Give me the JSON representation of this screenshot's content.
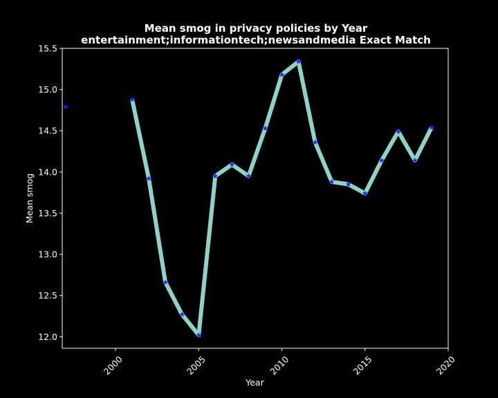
{
  "chart_data": {
    "type": "line",
    "title_line1": "Mean smog in privacy policies by Year",
    "title_line2": "entertainment;informationtech;newsandmedia Exact Match",
    "xlabel": "Year",
    "ylabel": "Mean smog",
    "xlim": [
      1996.8,
      2020.0
    ],
    "ylim": [
      11.86,
      15.5
    ],
    "xticks": [
      2000,
      2005,
      2010,
      2015,
      2020
    ],
    "yticks": [
      12.0,
      12.5,
      13.0,
      13.5,
      14.0,
      14.5,
      15.0,
      15.5
    ],
    "ytick_labels": [
      "12.0",
      "12.5",
      "13.0",
      "13.5",
      "14.0",
      "14.5",
      "15.0",
      "15.5"
    ],
    "grid": false,
    "x": [
      1997,
      2001,
      2002,
      2003,
      2004,
      2005,
      2006,
      2007,
      2008,
      2009,
      2010,
      2011,
      2012,
      2013,
      2014,
      2015,
      2016,
      2017,
      2018,
      2019
    ],
    "values": [
      14.79,
      14.88,
      13.92,
      12.66,
      12.27,
      12.02,
      13.95,
      14.09,
      13.95,
      14.53,
      15.18,
      15.34,
      14.36,
      13.88,
      13.85,
      13.74,
      14.14,
      14.49,
      14.14,
      14.54
    ],
    "line_color": "#8dd3c7",
    "marker_color": "#1f1fff",
    "background": "#000000",
    "foreground": "#ffffff"
  }
}
